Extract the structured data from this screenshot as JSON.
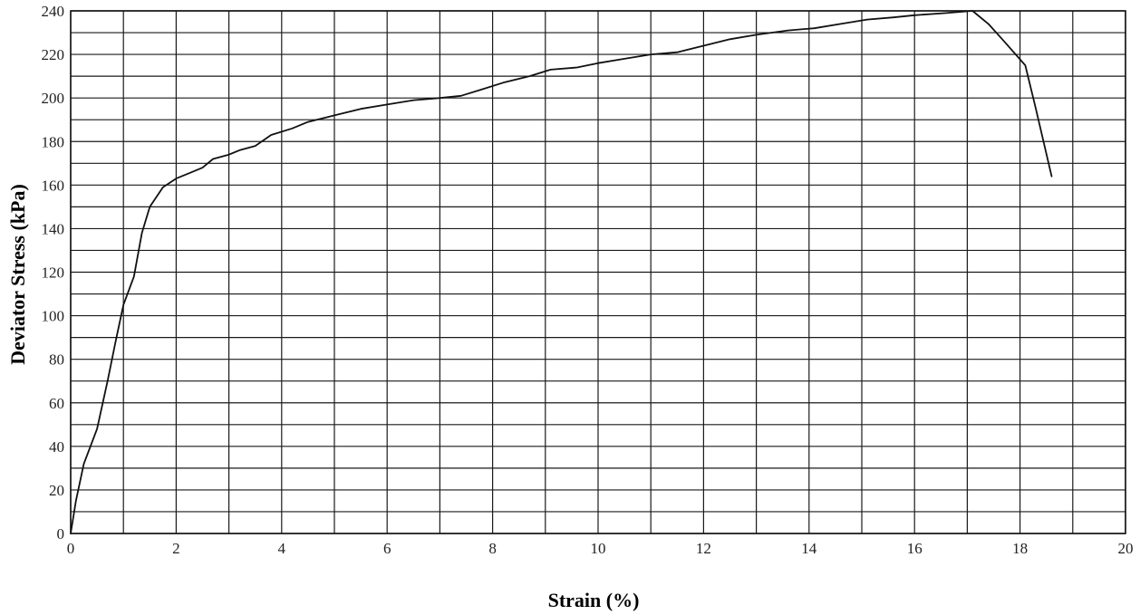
{
  "chart_data": {
    "type": "line",
    "title": "",
    "xlabel": "Strain (%)",
    "ylabel": "Deviator Stress (kPa)",
    "xlim": [
      0,
      20
    ],
    "ylim": [
      0,
      240
    ],
    "x_ticks": [
      0,
      2,
      4,
      6,
      8,
      10,
      12,
      14,
      16,
      18,
      20
    ],
    "y_ticks": [
      0,
      20,
      40,
      60,
      80,
      100,
      120,
      140,
      160,
      180,
      200,
      220,
      240
    ],
    "grid": true,
    "legend": "none",
    "line_color": "#111111",
    "series": [
      {
        "x": [
          0,
          0.1,
          0.25,
          0.5,
          0.7,
          0.85,
          1.0,
          1.2,
          1.35,
          1.5,
          1.75,
          2.0,
          2.3,
          2.5,
          2.7,
          3.0,
          3.2,
          3.5,
          3.8,
          4.2,
          4.5,
          5.0,
          5.5,
          6.0,
          6.5,
          7.0,
          7.4,
          7.8,
          8.2,
          8.7,
          9.1,
          9.6,
          10.0,
          10.5,
          11.0,
          11.5,
          12.0,
          12.5,
          13.0,
          13.6,
          14.1,
          14.6,
          15.1,
          15.6,
          16.0,
          16.6,
          17.1,
          17.4,
          17.7,
          18.1,
          18.3,
          18.6
        ],
        "y": [
          0,
          15,
          32,
          48,
          70,
          88,
          105,
          118,
          138,
          150,
          159,
          163,
          166,
          168,
          172,
          174,
          176,
          178,
          183,
          186,
          189,
          192,
          195,
          197,
          199,
          200,
          201,
          204,
          207,
          210,
          213,
          214,
          216,
          218,
          220,
          221,
          224,
          227,
          229,
          231,
          232,
          234,
          236,
          237,
          238,
          239,
          240,
          234,
          226,
          215,
          195,
          164
        ]
      }
    ]
  }
}
